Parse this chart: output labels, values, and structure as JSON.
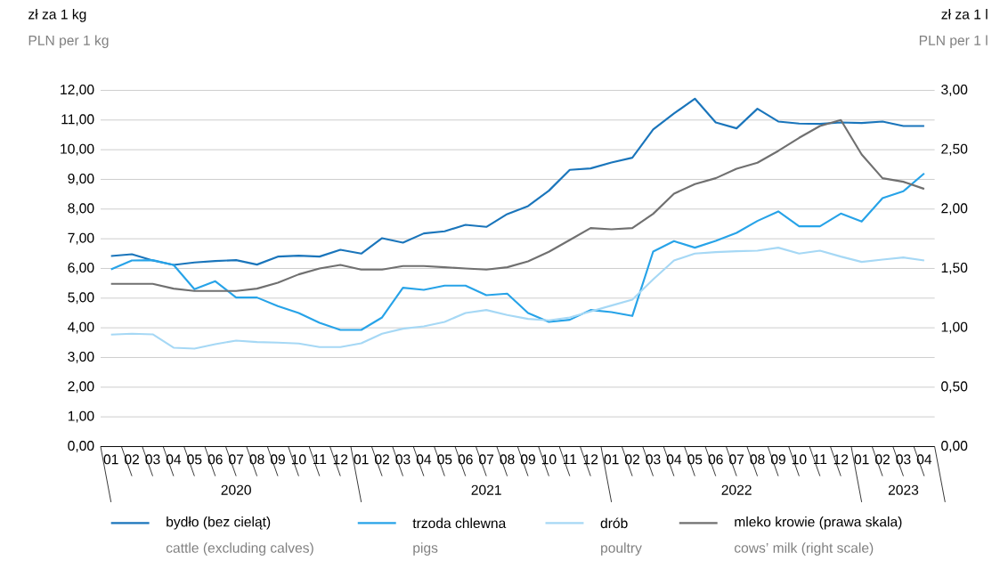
{
  "chart_data": {
    "type": "line",
    "ylabel": "zł za 1 kg",
    "y2label": "zł za 1 l",
    "annotations": [
      "PLN per 1 kg",
      "PLN per 1 l",
      "2020",
      "2021",
      "2022",
      "2023",
      "cattle (excluding calves)",
      "pigs",
      "poultry",
      "cows’ milk (right scale)"
    ],
    "categories": [
      "01",
      "02",
      "03",
      "04",
      "05",
      "06",
      "07",
      "08",
      "09",
      "10",
      "11",
      "12",
      "01",
      "02",
      "03",
      "04",
      "05",
      "06",
      "07",
      "08",
      "09",
      "10",
      "11",
      "12",
      "01",
      "02",
      "03",
      "04",
      "05",
      "06",
      "07",
      "08",
      "09",
      "10",
      "11",
      "12",
      "01",
      "02",
      "03",
      "04"
    ],
    "series": [
      {
        "name": "bydło (bez cieląt)",
        "color": "#1a75bb",
        "values": [
          6.42,
          6.48,
          6.27,
          6.12,
          6.2,
          6.25,
          6.28,
          6.13,
          6.4,
          6.43,
          6.4,
          6.63,
          6.5,
          7.02,
          6.87,
          7.18,
          7.25,
          7.47,
          7.4,
          7.83,
          8.1,
          8.62,
          9.32,
          9.37,
          9.57,
          9.73,
          10.68,
          11.22,
          11.72,
          10.92,
          10.72,
          11.38,
          10.95,
          10.88,
          10.87,
          10.92,
          10.9,
          10.95,
          10.8,
          10.8
        ]
      },
      {
        "name": "trzoda chlewna",
        "color": "#27a3e8",
        "values": [
          5.97,
          6.27,
          6.28,
          6.12,
          5.3,
          5.57,
          5.02,
          5.02,
          4.73,
          4.5,
          4.17,
          3.93,
          3.93,
          4.35,
          5.35,
          5.28,
          5.42,
          5.42,
          5.1,
          5.15,
          4.5,
          4.2,
          4.27,
          4.6,
          4.53,
          4.4,
          6.57,
          6.92,
          6.7,
          6.93,
          7.2,
          7.6,
          7.92,
          7.42,
          7.42,
          7.85,
          7.58,
          8.37,
          8.6,
          9.2
        ]
      },
      {
        "name": "drób",
        "color": "#a6d8f5",
        "values": [
          3.77,
          3.8,
          3.78,
          3.33,
          3.3,
          3.45,
          3.57,
          3.52,
          3.5,
          3.47,
          3.35,
          3.35,
          3.48,
          3.8,
          3.97,
          4.05,
          4.2,
          4.5,
          4.6,
          4.43,
          4.3,
          4.25,
          4.35,
          4.55,
          4.75,
          4.95,
          5.63,
          6.27,
          6.5,
          6.55,
          6.58,
          6.6,
          6.7,
          6.5,
          6.6,
          6.4,
          6.22,
          6.3,
          6.37,
          6.27
        ]
      },
      {
        "name": "mleko krowie (prawa skala)",
        "color": "#707070",
        "axis": "y2",
        "values": [
          1.37,
          1.37,
          1.37,
          1.33,
          1.31,
          1.31,
          1.31,
          1.33,
          1.38,
          1.45,
          1.5,
          1.53,
          1.49,
          1.49,
          1.52,
          1.52,
          1.51,
          1.5,
          1.49,
          1.51,
          1.56,
          1.64,
          1.74,
          1.84,
          1.83,
          1.84,
          1.96,
          2.13,
          2.21,
          2.26,
          2.34,
          2.39,
          2.49,
          2.6,
          2.7,
          2.75,
          2.46,
          2.26,
          2.23,
          2.17
        ]
      }
    ],
    "ylim": [
      0,
      12
    ],
    "yticks": [
      {
        "value": 0,
        "label": "0,00"
      },
      {
        "value": 1,
        "label": "1,00"
      },
      {
        "value": 2,
        "label": "2,00"
      },
      {
        "value": 3,
        "label": "3,00"
      },
      {
        "value": 4,
        "label": "4,00"
      },
      {
        "value": 5,
        "label": "5,00"
      },
      {
        "value": 6,
        "label": "6,00"
      },
      {
        "value": 7,
        "label": "7,00"
      },
      {
        "value": 8,
        "label": "8,00"
      },
      {
        "value": 9,
        "label": "9,00"
      },
      {
        "value": 10,
        "label": "10,00"
      },
      {
        "value": 11,
        "label": "11,00"
      },
      {
        "value": 12,
        "label": "12,00"
      }
    ],
    "y2lim": [
      0,
      3
    ],
    "y2ticks": [
      {
        "value": 0,
        "label": "0,00"
      },
      {
        "value": 0.5,
        "label": "0,50"
      },
      {
        "value": 1,
        "label": "1,00"
      },
      {
        "value": 1.5,
        "label": "1,50"
      },
      {
        "value": 2,
        "label": "2,00"
      },
      {
        "value": 2.5,
        "label": "2,50"
      },
      {
        "value": 3,
        "label": "3,00"
      }
    ],
    "grid": "y",
    "legend": "bottom",
    "marker": "none",
    "line_style": "solid"
  }
}
